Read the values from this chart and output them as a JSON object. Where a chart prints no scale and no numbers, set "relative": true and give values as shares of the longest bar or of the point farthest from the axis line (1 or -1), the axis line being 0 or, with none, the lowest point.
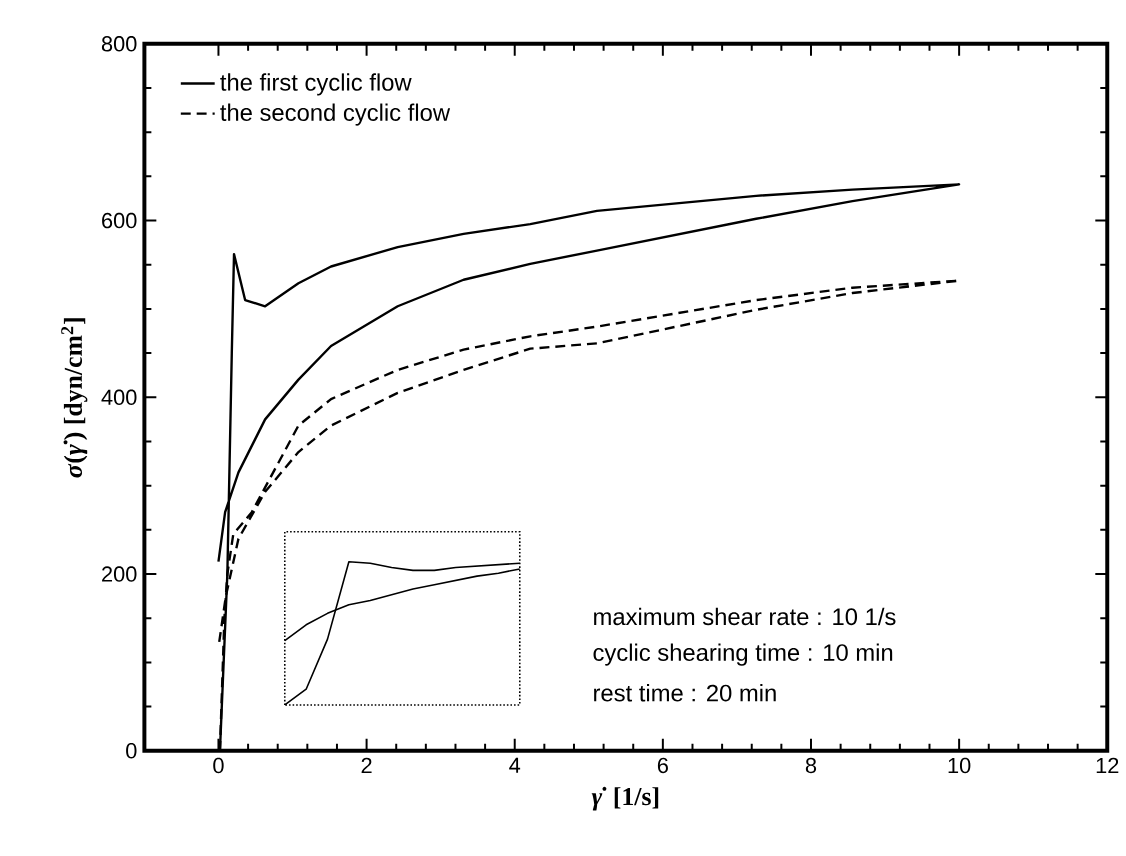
{
  "chart_data": [
    {
      "type": "line",
      "xlabel": "*γ̇* [1/s]",
      "ylabel": "*σ*(*γ̇*) [dyn/cm$^{2}$]",
      "xlim": [
        -1,
        12
      ],
      "ylim": [
        0,
        800
      ],
      "xticks": [
        0,
        2,
        4,
        6,
        8,
        10,
        12
      ],
      "yticks": [
        0,
        200,
        400,
        600,
        800
      ],
      "grid": false,
      "legend": "top left",
      "marker": "none",
      "annotations": [
        "maximum shear rate : 10  1/s",
        "cyclic shearing time  : 10  min",
        "rest time                        : 20  min"
      ],
      "series": [
        {
          "name": "the first cyclic flow",
          "color": "#000000",
          "line_style": "solid",
          "x": [
            0.02,
            0.12,
            0.18,
            0.21,
            0.36,
            0.63,
            1.08,
            1.52,
            2.42,
            3.31,
            4.21,
            5.11,
            7.26,
            8.56,
            10,
            8.56,
            7.26,
            5.11,
            4.21,
            3.31,
            2.42,
            1.52,
            1.08,
            0.63,
            0.27,
            0.09,
            0
          ],
          "values": [
            0,
            200,
            450,
            562,
            510,
            503,
            529,
            548,
            570,
            585,
            596,
            611,
            628,
            635,
            641,
            622,
            602,
            566,
            551,
            533,
            503,
            458,
            420,
            375,
            315,
            270,
            214
          ]
        },
        {
          "name": "the second cyclic flow",
          "color": "#000000",
          "line_style": "dashed",
          "x": [
            0.02,
            0.08,
            0.12,
            0.2,
            0.45,
            1.08,
            1.52,
            2.42,
            3.31,
            4.21,
            5.11,
            7.26,
            8.56,
            10,
            8.56,
            7.26,
            5.11,
            4.21,
            3.31,
            2.42,
            1.52,
            1.08,
            0.63,
            0.27,
            0.1,
            0
          ],
          "values": [
            0,
            150,
            200,
            245,
            270,
            368,
            398,
            431,
            454,
            469,
            480,
            510,
            524,
            532,
            518,
            499,
            461,
            455,
            431,
            405,
            368,
            338,
            293,
            240,
            175,
            117
          ]
        }
      ]
    },
    {
      "type": "line",
      "relative": true,
      "marker": "none",
      "categories": [
        null,
        null,
        null,
        null,
        null,
        null,
        null,
        null,
        null,
        null,
        null,
        null
      ],
      "series": [
        {
          "color": "#000000",
          "line_style": "solid",
          "values": [
            0,
            0.11,
            0.46,
            1.0,
            0.99,
            0.96,
            0.94,
            0.94,
            0.96,
            0.97,
            0.98,
            0.99
          ]
        },
        {
          "color": "#000000",
          "line_style": "solid",
          "values": [
            0.45,
            0.56,
            0.64,
            0.7,
            0.73,
            0.77,
            0.81,
            0.84,
            0.87,
            0.9,
            0.92,
            0.95
          ]
        }
      ]
    }
  ]
}
